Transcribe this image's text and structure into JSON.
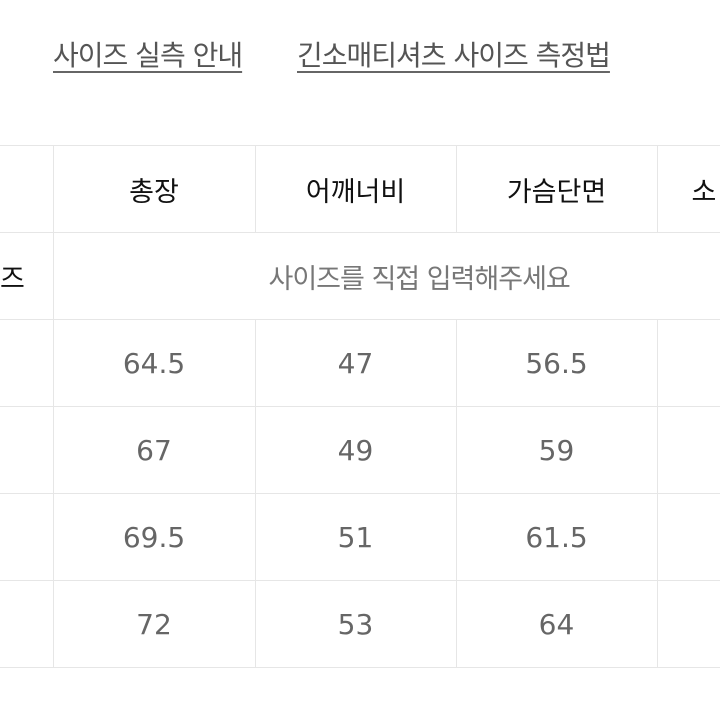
{
  "links": [
    "사이즈 실측 안내",
    "긴소매티셔츠 사이즈 측정법"
  ],
  "table": {
    "headers": [
      "",
      "총장",
      "어깨너비",
      "가슴단면",
      "소"
    ],
    "input_row": {
      "label": "즈",
      "note": "사이즈를 직접 입력해주세요"
    },
    "rows": [
      [
        "64.5",
        "47",
        "56.5"
      ],
      [
        "67",
        "49",
        "59"
      ],
      [
        "69.5",
        "51",
        "61.5"
      ],
      [
        "72",
        "53",
        "64"
      ]
    ]
  }
}
